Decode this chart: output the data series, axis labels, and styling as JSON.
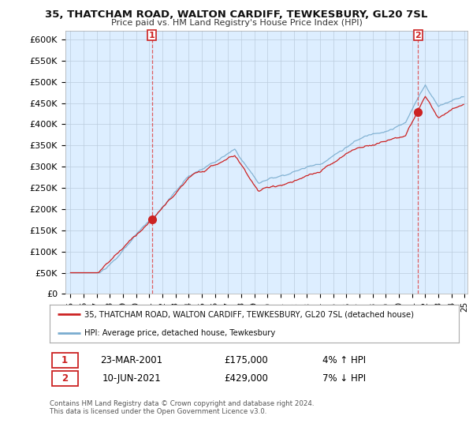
{
  "title": "35, THATCHAM ROAD, WALTON CARDIFF, TEWKESBURY, GL20 7SL",
  "subtitle": "Price paid vs. HM Land Registry's House Price Index (HPI)",
  "ylim": [
    0,
    620000
  ],
  "yticks": [
    0,
    50000,
    100000,
    150000,
    200000,
    250000,
    300000,
    350000,
    400000,
    450000,
    500000,
    550000,
    600000
  ],
  "ytick_labels": [
    "£0",
    "£50K",
    "£100K",
    "£150K",
    "£200K",
    "£250K",
    "£300K",
    "£350K",
    "£400K",
    "£450K",
    "£500K",
    "£550K",
    "£600K"
  ],
  "hpi_color": "#7aadcf",
  "price_color": "#cc2222",
  "vline_color": "#dd4444",
  "chart_bg": "#ddeeff",
  "marker1_year": 2001.2,
  "marker1_price": 175000,
  "marker2_year": 2021.45,
  "marker2_price": 429000,
  "legend_entry1": "35, THATCHAM ROAD, WALTON CARDIFF, TEWKESBURY, GL20 7SL (detached house)",
  "legend_entry2": "HPI: Average price, detached house, Tewkesbury",
  "table_row1": [
    "1",
    "23-MAR-2001",
    "£175,000",
    "4% ↑ HPI"
  ],
  "table_row2": [
    "2",
    "10-JUN-2021",
    "£429,000",
    "7% ↓ HPI"
  ],
  "footer": "Contains HM Land Registry data © Crown copyright and database right 2024.\nThis data is licensed under the Open Government Licence v3.0.",
  "background_color": "#ffffff",
  "grid_color": "#bbccdd"
}
